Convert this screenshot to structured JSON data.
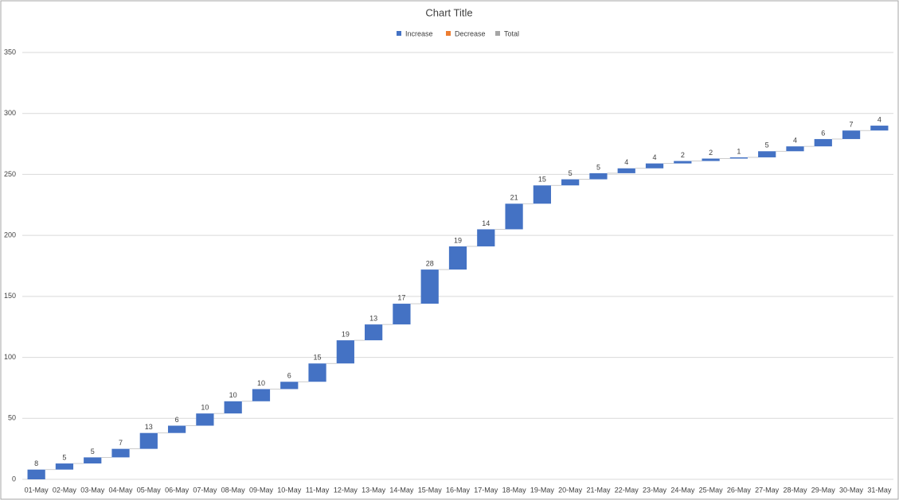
{
  "chart_data": {
    "type": "waterfall",
    "title": "Chart Title",
    "legend": [
      {
        "name": "Increase",
        "color": "#4472c4"
      },
      {
        "name": "Decrease",
        "color": "#ed7d31"
      },
      {
        "name": "Total",
        "color": "#a5a5a5"
      }
    ],
    "categories": [
      "01-May",
      "02-May",
      "03-May",
      "04-May",
      "05-May",
      "06-May",
      "07-May",
      "08-May",
      "09-May",
      "10-May",
      "11-May",
      "12-May",
      "13-May",
      "14-May",
      "15-May",
      "16-May",
      "17-May",
      "18-May",
      "19-May",
      "20-May",
      "21-May",
      "22-May",
      "23-May",
      "24-May",
      "25-May",
      "26-May",
      "27-May",
      "28-May",
      "29-May",
      "30-May",
      "31-May"
    ],
    "values": [
      8,
      5,
      5,
      7,
      13,
      6,
      10,
      10,
      10,
      6,
      15,
      19,
      13,
      17,
      28,
      19,
      14,
      21,
      15,
      5,
      5,
      4,
      4,
      2,
      2,
      1,
      5,
      4,
      6,
      7,
      4
    ],
    "ylim": [
      0,
      350
    ],
    "yticks": [
      0,
      50,
      100,
      150,
      200,
      250,
      300,
      350
    ],
    "grid": true
  }
}
